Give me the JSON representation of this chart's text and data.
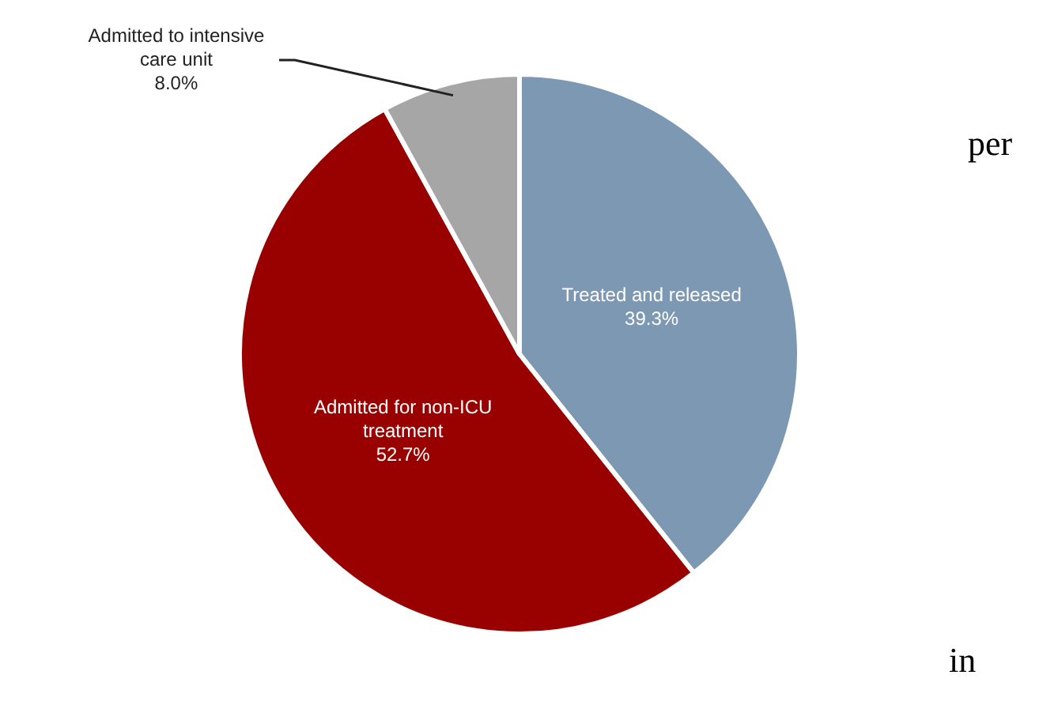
{
  "chart_data": {
    "type": "pie",
    "categories": [
      "Treated and released",
      "Admitted for non-ICU treatment",
      "Admitted to intensive care unit"
    ],
    "values": [
      39.3,
      52.7,
      8.0
    ],
    "value_labels": [
      "39.3%",
      "52.7%",
      "8.0%"
    ],
    "colors": [
      "#7d98b3",
      "#990000",
      "#a6a6a6"
    ],
    "legend": false,
    "annotations": [
      "per",
      "in"
    ]
  }
}
